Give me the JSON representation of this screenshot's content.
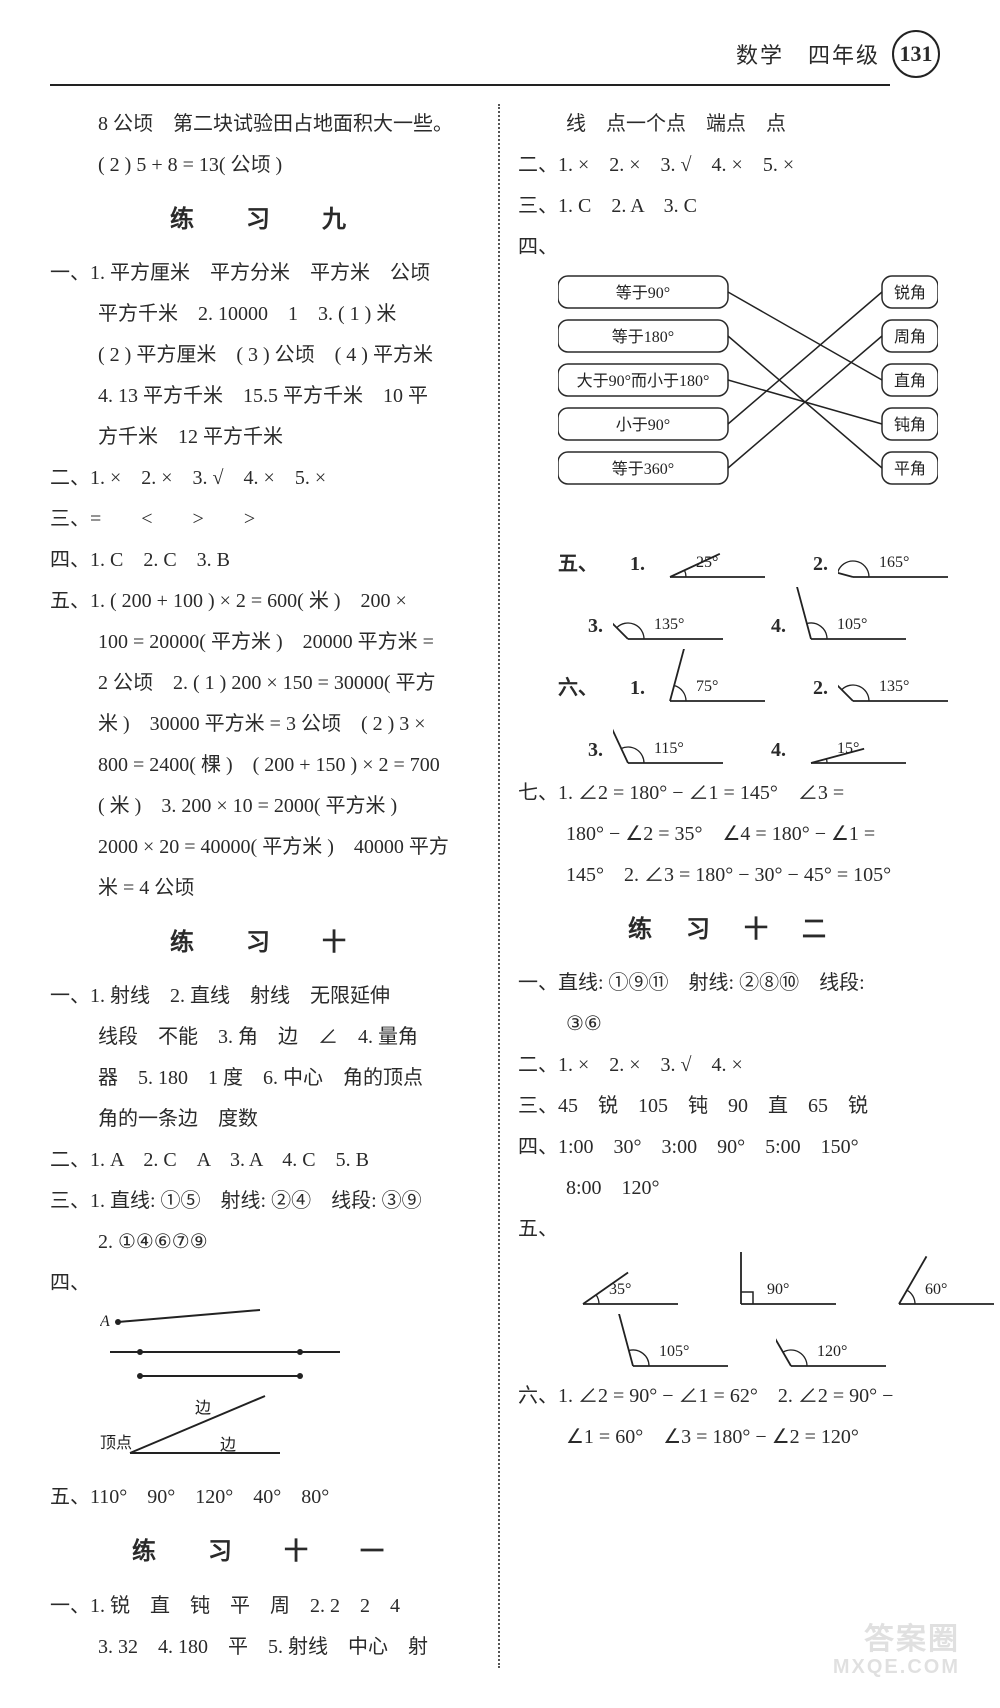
{
  "header": {
    "subject": "数学　四年级",
    "page": "131"
  },
  "top_frag": {
    "l1": "8 公顷　第二块试验田占地面积大一些。",
    "l2": "( 2 ) 5 + 8 = 13( 公顷 )"
  },
  "ex9": {
    "title": "练　习　九",
    "l1": "一、1. 平方厘米　平方分米　平方米　公顷",
    "l2": "平方千米　2. 10000　1　3. ( 1 ) 米",
    "l3": "( 2 ) 平方厘米　( 3 ) 公顷　( 4 ) 平方米",
    "l4": "4. 13 平方千米　15.5 平方千米　10 平",
    "l5": "方千米　12 平方千米",
    "l6": "二、1. ×　2. ×　3. √　4. ×　5. ×",
    "l7": "三、=　　<　　>　　>",
    "l8": "四、1. C　2. C　3. B",
    "l9": "五、1. ( 200 + 100 ) × 2 = 600( 米 )　200 ×",
    "l10": "100 = 20000( 平方米 )　20000 平方米 =",
    "l11": "2 公顷　2. ( 1 ) 200 × 150 = 30000( 平方",
    "l12": "米 )　30000 平方米 = 3 公顷　( 2 ) 3 ×",
    "l13": "800 = 2400( 棵 )　( 200 + 150 ) × 2 = 700",
    "l14": "( 米 )　3. 200 × 10 = 2000( 平方米 )",
    "l15": "2000 × 20 = 40000( 平方米 )　40000 平方",
    "l16": "米 = 4 公顷"
  },
  "ex10": {
    "title": "练　习　十",
    "l1": "一、1. 射线　2. 直线　射线　无限延伸",
    "l2": "线段　不能　3. 角　边　∠　4. 量角",
    "l3": "器　5. 180　1 度　6. 中心　角的顶点",
    "l4": "角的一条边　度数",
    "l5": "二、1. A　2. C　A　3. A　4. C　5. B",
    "l6": "三、1. 直线: ①⑤　射线: ②④　线段: ③⑨",
    "l7": "2. ①④⑥⑦⑨",
    "l8": "四、",
    "sk": {
      "A": "A",
      "bian": "边",
      "dingdian": "顶点"
    },
    "l9": "五、110°　90°　120°　40°　80°"
  },
  "ex11": {
    "title": "练　习　十　一",
    "l1": "一、1. 锐　直　钝　平　周　2. 2　2　4",
    "l2": "3. 32　4. 180　平　5. 射线　中心　射"
  },
  "right_top": {
    "l1": "线　点一个点　端点　点",
    "l2": "二、1. ×　2. ×　3. √　4. ×　5. ×",
    "l3": "三、1. C　2. A　3. C",
    "l4": "四、"
  },
  "match": {
    "left": [
      "等于90°",
      "等于180°",
      "大于90°而小于180°",
      "小于90°",
      "等于360°"
    ],
    "right": [
      "锐角",
      "周角",
      "直角",
      "钝角",
      "平角"
    ],
    "edges": [
      [
        0,
        2
      ],
      [
        1,
        4
      ],
      [
        2,
        3
      ],
      [
        3,
        0
      ],
      [
        4,
        1
      ]
    ]
  },
  "sec5": {
    "lead": "五、",
    "items": [
      {
        "n": "1.",
        "deg": "25°",
        "type": "acute"
      },
      {
        "n": "2.",
        "deg": "165°",
        "type": "obtuse"
      },
      {
        "n": "3.",
        "deg": "135°",
        "type": "obtuse"
      },
      {
        "n": "4.",
        "deg": "105°",
        "type": "obtuse-down"
      }
    ]
  },
  "sec6": {
    "lead": "六、",
    "items": [
      {
        "n": "1.",
        "deg": "75°",
        "type": "acute"
      },
      {
        "n": "2.",
        "deg": "135°",
        "type": "obtuse"
      },
      {
        "n": "3.",
        "deg": "115°",
        "type": "obtuse"
      },
      {
        "n": "4.",
        "deg": "15°",
        "type": "acute-small"
      }
    ]
  },
  "sec7": {
    "l1": "七、1. ∠2 = 180° − ∠1 = 145°　∠3 =",
    "l2": "180° − ∠2 = 35°　∠4 = 180° − ∠1 =",
    "l3": "145°　2. ∠3 = 180° − 30° − 45° = 105°"
  },
  "ex12": {
    "title": "练 习 十 二",
    "l1": "一、直线: ①⑨⑪　射线: ②⑧⑩　线段:",
    "l2": "③⑥",
    "l3": "二、1. ×　2. ×　3. √　4. ×",
    "l4": "三、45　锐　105　钝　90　直　65　锐",
    "l5": "四、1:00　30°　3:00　90°　5:00　150°",
    "l6": "8:00　120°",
    "l7": "五、",
    "angles": [
      {
        "deg": "35°",
        "type": "acute"
      },
      {
        "deg": "90°",
        "type": "right"
      },
      {
        "deg": "60°",
        "type": "acute"
      },
      {
        "deg": "105°",
        "type": "obtuse"
      },
      {
        "deg": "120°",
        "type": "obtuse"
      }
    ],
    "l8": "六、1. ∠2 = 90° − ∠1 = 62°　2. ∠2 = 90° −",
    "l9": "∠1 = 60°　∠3 = 180° − ∠2 = 120°"
  },
  "watermark": {
    "w1": "答案圈",
    "w2": "MXQE.COM"
  },
  "colors": {
    "text": "#2a2a2a",
    "line": "#222",
    "box_border": "#2a2a2a"
  }
}
